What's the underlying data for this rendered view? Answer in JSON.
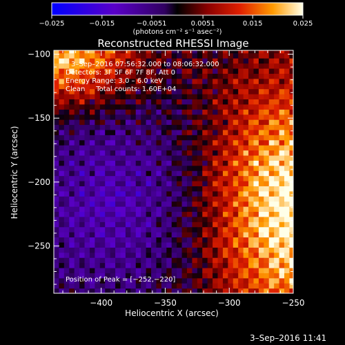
{
  "colorbar": {
    "ticks": [
      "−0.025",
      "−0.015",
      "−0.0051",
      "0.0051",
      "0.015",
      "0.025"
    ],
    "tick_values": [
      -0.025,
      -0.015,
      -0.0051,
      0.0051,
      0.015,
      0.025
    ],
    "units_label": "(photons cm⁻² s⁻¹ asec⁻²)",
    "range": [
      -0.025,
      0.025
    ]
  },
  "plot": {
    "title": "Reconstructed RHESSI Image",
    "annotations": [
      "3–Sep–2016 07:56:32.000 to 08:06:32.000",
      "Detectors: 3F 5F 6F 7F 8F, Att 0",
      "Energy Range: 3.0 – 6.0 keV",
      "Clean     Total counts: 1.60E+04"
    ],
    "peak_label": "Position of Peak = [−252,−220]",
    "xlabel": "Heliocentric X (arcsec)",
    "ylabel": "Heliocentric Y (arcsec)",
    "timestamp": "3–Sep–2016 11:41"
  },
  "chart_data": {
    "type": "heatmap",
    "title": "Reconstructed RHESSI Image",
    "xlabel": "Heliocentric X (arcsec)",
    "ylabel": "Heliocentric Y (arcsec)",
    "xlim": [
      -437,
      -250
    ],
    "ylim": [
      -287,
      -97
    ],
    "x_ticks": [
      -400,
      -350,
      -300,
      -250
    ],
    "x_tick_labels": [
      "−400",
      "−350",
      "−300",
      "−250"
    ],
    "y_ticks": [
      -100,
      -150,
      -200,
      -250
    ],
    "y_tick_labels": [
      "−100",
      "−150",
      "−200",
      "−250"
    ],
    "colorbar_range": [
      -0.025,
      0.025
    ],
    "peak_position": [
      -252,
      -220
    ],
    "colors": {
      "negative": "#0000ff",
      "zero": "#000000",
      "positive_low": "#c00000",
      "positive_mid": "#ff8000",
      "positive_high": "#ffffe0"
    }
  }
}
